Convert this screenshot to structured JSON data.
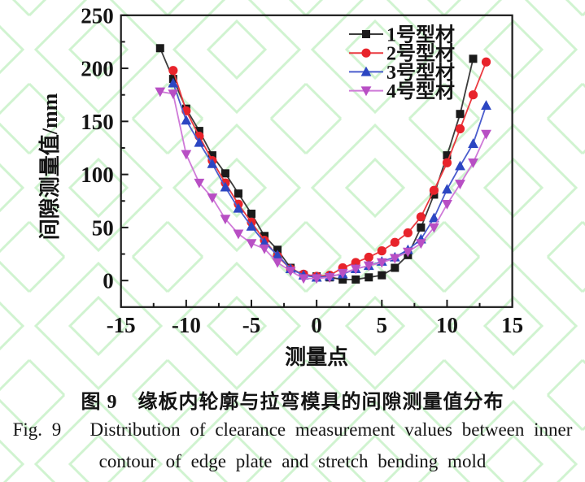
{
  "captions": {
    "chinese": "图 9　缘板内轮廓与拉弯模具的间隙测量值分布",
    "english_line1": "Fig. 9   Distribution of clearance measurement values between inner",
    "english_line2": "contour of edge plate and stretch bending mold"
  },
  "colors": {
    "axis": "#1a1a1a",
    "watermark": "#a9e9a9"
  },
  "chart_data": {
    "type": "line",
    "title": "",
    "xlabel": "测量点",
    "ylabel": "间隙测量值/mm",
    "xlim": [
      -15,
      15
    ],
    "ylim": [
      -25,
      250
    ],
    "x_major_ticks": [
      -15,
      -10,
      -5,
      0,
      5,
      10,
      15
    ],
    "x_minor_ticks": [
      -12.5,
      -7.5,
      -2.5,
      2.5,
      7.5,
      12.5
    ],
    "y_major_ticks": [
      0,
      50,
      100,
      150,
      200,
      250
    ],
    "y_minor_ticks": [
      25,
      75,
      125,
      175,
      225
    ],
    "grid": false,
    "legend_position": "top-center-inside",
    "series": [
      {
        "name": "1号型材",
        "color": "#1a1a1a",
        "line_color": "#3c3c3c",
        "marker": "square",
        "points": [
          [
            -12,
            219
          ],
          [
            -11,
            190
          ],
          [
            -10,
            162
          ],
          [
            -9,
            141
          ],
          [
            -8,
            118
          ],
          [
            -7,
            101
          ],
          [
            -6,
            82
          ],
          [
            -5,
            63
          ],
          [
            -4,
            42
          ],
          [
            -3,
            29
          ],
          [
            -2,
            12
          ],
          [
            -1,
            5
          ],
          [
            0,
            4
          ],
          [
            1,
            3
          ],
          [
            2,
            1
          ],
          [
            3,
            1
          ],
          [
            4,
            3
          ],
          [
            5,
            5
          ],
          [
            6,
            12
          ],
          [
            7,
            24
          ],
          [
            8,
            50
          ],
          [
            9,
            81
          ],
          [
            10,
            118
          ],
          [
            11,
            157
          ],
          [
            12,
            209
          ]
        ]
      },
      {
        "name": "2号型材",
        "color": "#e8232b",
        "line_color": "#ea3a40",
        "marker": "circle",
        "points": [
          [
            -11,
            198
          ],
          [
            -10,
            160
          ],
          [
            -9,
            136
          ],
          [
            -8,
            113
          ],
          [
            -7,
            92
          ],
          [
            -6,
            72
          ],
          [
            -5,
            55
          ],
          [
            -4,
            38
          ],
          [
            -3,
            23
          ],
          [
            -2,
            11
          ],
          [
            -1,
            6
          ],
          [
            0,
            4
          ],
          [
            1,
            5
          ],
          [
            2,
            12
          ],
          [
            3,
            17
          ],
          [
            4,
            22
          ],
          [
            5,
            28
          ],
          [
            6,
            36
          ],
          [
            7,
            45
          ],
          [
            8,
            60
          ],
          [
            9,
            85
          ],
          [
            10,
            111
          ],
          [
            11,
            143
          ],
          [
            12,
            175
          ],
          [
            13,
            206
          ]
        ]
      },
      {
        "name": "3号型材",
        "color": "#2c46c2",
        "line_color": "#4a5ccd",
        "marker": "triangle-up",
        "points": [
          [
            -11,
            186
          ],
          [
            -10,
            151
          ],
          [
            -9,
            130
          ],
          [
            -8,
            110
          ],
          [
            -7,
            88
          ],
          [
            -6,
            68
          ],
          [
            -5,
            51
          ],
          [
            -4,
            36
          ],
          [
            -3,
            24
          ],
          [
            -2,
            11
          ],
          [
            -1,
            5
          ],
          [
            0,
            3
          ],
          [
            1,
            4
          ],
          [
            2,
            6
          ],
          [
            3,
            11
          ],
          [
            4,
            14
          ],
          [
            5,
            18
          ],
          [
            6,
            22
          ],
          [
            7,
            29
          ],
          [
            8,
            39
          ],
          [
            9,
            59
          ],
          [
            10,
            86
          ],
          [
            11,
            108
          ],
          [
            12,
            129
          ],
          [
            13,
            165
          ]
        ]
      },
      {
        "name": "4号型材",
        "color": "#b84fc4",
        "line_color": "#cf7ad8",
        "marker": "triangle-down",
        "points": [
          [
            -12,
            178
          ],
          [
            -11,
            176
          ],
          [
            -10,
            119
          ],
          [
            -9,
            92
          ],
          [
            -8,
            78
          ],
          [
            -7,
            58
          ],
          [
            -6,
            44
          ],
          [
            -5,
            35
          ],
          [
            -4,
            30
          ],
          [
            -3,
            17
          ],
          [
            -2,
            9
          ],
          [
            -1,
            2
          ],
          [
            0,
            2
          ],
          [
            1,
            3
          ],
          [
            2,
            7
          ],
          [
            3,
            11
          ],
          [
            4,
            14
          ],
          [
            5,
            17
          ],
          [
            6,
            21
          ],
          [
            7,
            27
          ],
          [
            8,
            35
          ],
          [
            9,
            50
          ],
          [
            10,
            72
          ],
          [
            11,
            91
          ],
          [
            12,
            111
          ],
          [
            13,
            138
          ]
        ]
      }
    ]
  }
}
